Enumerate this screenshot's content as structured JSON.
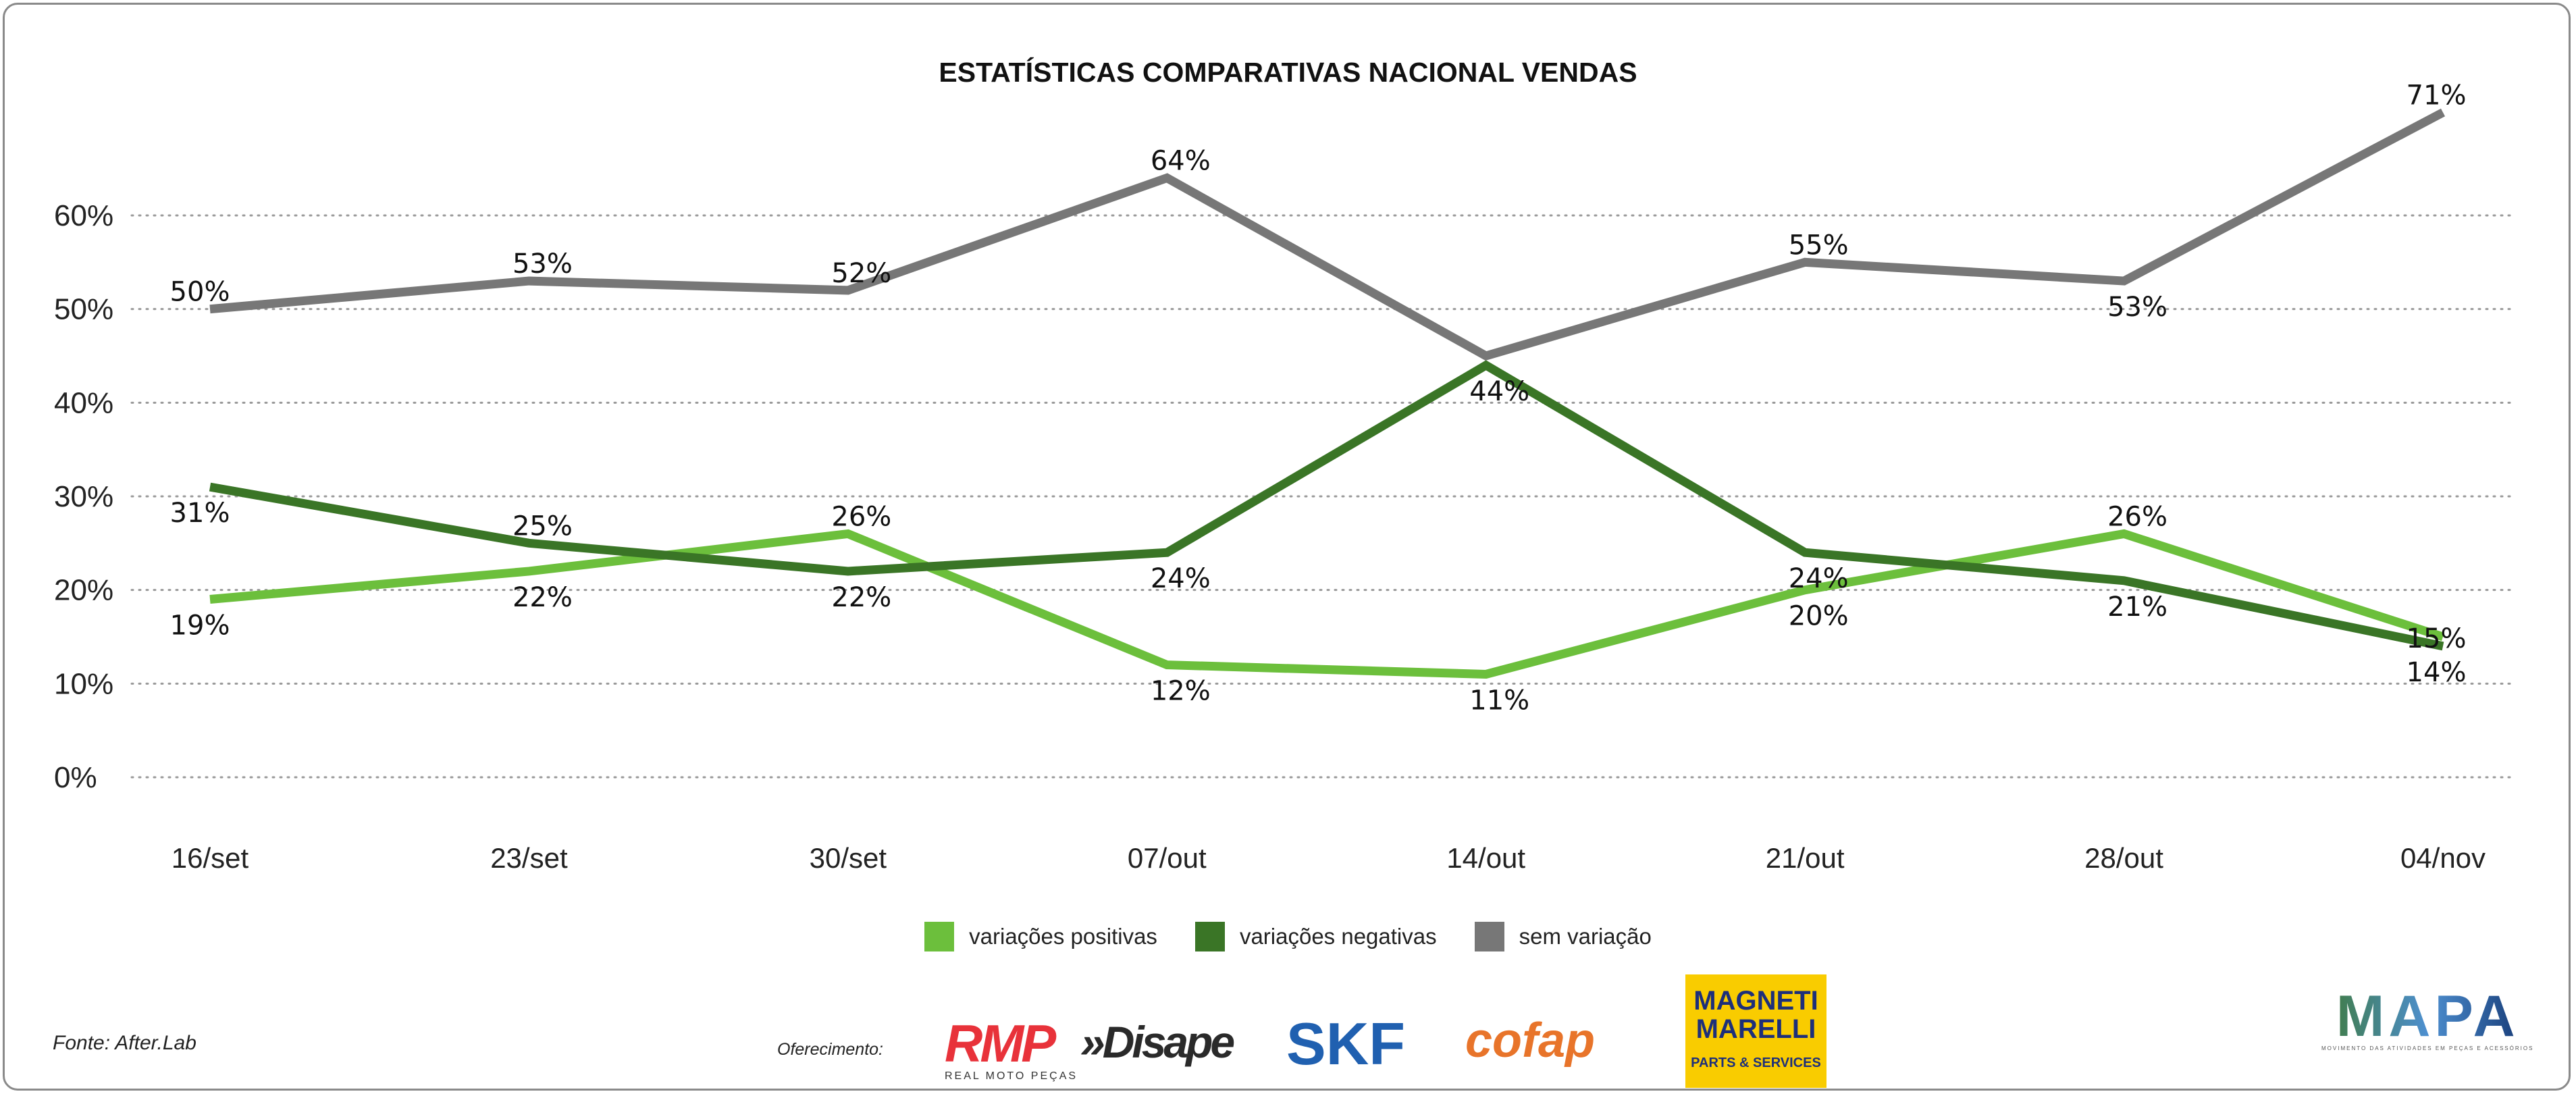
{
  "chart_data": {
    "type": "line",
    "title": "ESTATÍSTICAS COMPARATIVAS NACIONAL VENDAS",
    "xlabel": "",
    "ylabel": "",
    "ylim": [
      0,
      60
    ],
    "yticks": [
      "0%",
      "10%",
      "20%",
      "30%",
      "40%",
      "50%",
      "60%"
    ],
    "grid": true,
    "legend_position": "bottom",
    "categories": [
      "16/set",
      "23/set",
      "30/set",
      "07/out",
      "14/out",
      "21/out",
      "28/out",
      "04/nov"
    ],
    "series": [
      {
        "name": "variações positivas",
        "color": "#6cbf3c",
        "values": [
          19,
          22,
          26,
          12,
          11,
          20,
          26,
          15
        ],
        "labels": [
          "19%",
          "22%",
          "26%",
          "12%",
          "11%",
          "20%",
          "26%",
          "15%"
        ],
        "label_side": [
          "below",
          "below",
          "above",
          "below",
          "below",
          "below",
          "above",
          "below"
        ]
      },
      {
        "name": "variações negativas",
        "color": "#3a7526",
        "values": [
          31,
          25,
          22,
          24,
          44,
          24,
          21,
          14
        ],
        "labels": [
          "31%",
          "25%",
          "22%",
          "24%",
          "44%",
          "24%",
          "21%",
          "14%"
        ],
        "label_side": [
          "below",
          "above",
          "below",
          "below",
          "below",
          "below",
          "below",
          "below"
        ]
      },
      {
        "name": "sem variação",
        "color": "#777777",
        "values": [
          50,
          53,
          52,
          64,
          45,
          55,
          53,
          71
        ],
        "labels": [
          "50%",
          "53%",
          "52%",
          "64%",
          null,
          "55%",
          "53%",
          "71%"
        ],
        "label_side": [
          "above",
          "above",
          "above",
          "above",
          "above",
          "above",
          "below",
          "above"
        ]
      }
    ]
  },
  "footer": {
    "source": "Fonte: After.Lab",
    "sponsor_label": "Oferecimento:",
    "sponsors": {
      "rmp": "RMP",
      "rmp_sub": "REAL MOTO PEÇAS",
      "disape": "»Disape",
      "skf": "SKF",
      "cofap": "cofap",
      "magneti": "MAGNETI MARELLI",
      "magneti_sub": "PARTS & SERVICES"
    },
    "brand": "MAPA",
    "brand_sub": "MOVIMENTO DAS ATIVIDADES EM PEÇAS E ACESSÓRIOS"
  }
}
